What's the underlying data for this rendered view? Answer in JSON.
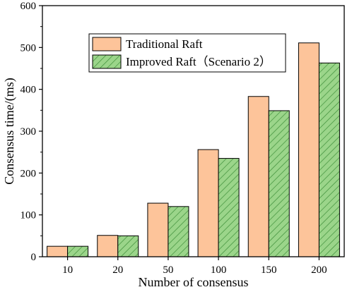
{
  "chart_data": {
    "type": "bar",
    "title": "",
    "xlabel": "Number of consensus",
    "ylabel": "Consensus time/(ms)",
    "categories": [
      "10",
      "20",
      "50",
      "100",
      "150",
      "200"
    ],
    "ylim": [
      0,
      600
    ],
    "yticks": [
      "0",
      "100",
      "200",
      "300",
      "400",
      "500",
      "600"
    ],
    "grid": false,
    "legend_position": "top-center",
    "series": [
      {
        "name": "Traditional Raft",
        "values": [
          25,
          51,
          128,
          256,
          383,
          511
        ],
        "color": "#fdc49a",
        "pattern": "solid"
      },
      {
        "name": "Improved Raft（Scenario 2）",
        "values": [
          25,
          50,
          120,
          235,
          349,
          463
        ],
        "color": "#9bd58a",
        "pattern": "hatched"
      }
    ]
  }
}
